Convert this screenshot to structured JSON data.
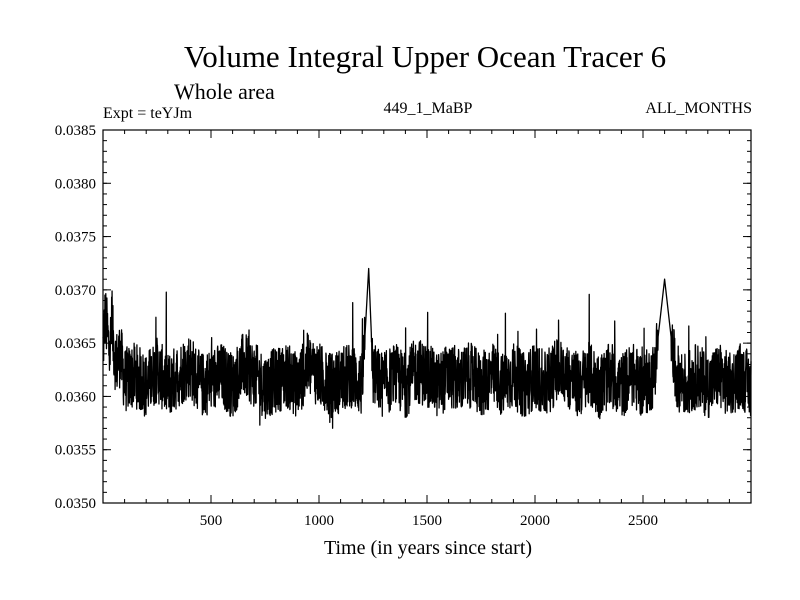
{
  "chart_data": {
    "type": "line",
    "title": "Volume Integral Upper Ocean Tracer 6",
    "subtitle": "Whole area",
    "expt_label": "Expt = teYJm",
    "center_label": "449_1_MaBP",
    "right_label": "ALL_MONTHS",
    "xlabel": "Time (in years since start)",
    "ylabel": "",
    "xlim": [
      0,
      3000
    ],
    "ylim": [
      0.035,
      0.0385
    ],
    "x_ticks": [
      500,
      1000,
      1500,
      2000,
      2500
    ],
    "x_tick_labels": [
      "500",
      "1000",
      "1500",
      "2000",
      "2500"
    ],
    "y_ticks": [
      0.035,
      0.0355,
      0.036,
      0.0365,
      0.037,
      0.0375,
      0.038,
      0.0385
    ],
    "y_tick_labels": [
      "0.0350",
      "0.0355",
      "0.0360",
      "0.0365",
      "0.0370",
      "0.0375",
      "0.0380",
      "0.0385"
    ],
    "series": [
      {
        "name": "Upper Ocean Tracer 6",
        "color": "#000000",
        "x": [
          0,
          10,
          20,
          30,
          40,
          60,
          80,
          100,
          150,
          200,
          250,
          300,
          350,
          400,
          450,
          500,
          550,
          600,
          650,
          700,
          750,
          800,
          850,
          900,
          950,
          1000,
          1050,
          1100,
          1150,
          1200,
          1230,
          1250,
          1300,
          1350,
          1400,
          1450,
          1500,
          1550,
          1600,
          1650,
          1700,
          1750,
          1800,
          1850,
          1900,
          1950,
          2000,
          2050,
          2100,
          2150,
          2200,
          2250,
          2300,
          2350,
          2400,
          2450,
          2500,
          2550,
          2600,
          2650,
          2700,
          2750,
          2800,
          2850,
          2900,
          2950,
          3000
        ],
        "values": [
          0.03645,
          0.03675,
          0.0366,
          0.0364,
          0.03665,
          0.0363,
          0.0364,
          0.03615,
          0.0362,
          0.0361,
          0.03625,
          0.0361,
          0.0362,
          0.0363,
          0.0361,
          0.03615,
          0.0362,
          0.0361,
          0.0363,
          0.0362,
          0.0361,
          0.03615,
          0.0362,
          0.0361,
          0.0363,
          0.0362,
          0.0361,
          0.03615,
          0.0362,
          0.0361,
          0.0372,
          0.0362,
          0.0361,
          0.0362,
          0.0361,
          0.03625,
          0.0362,
          0.0361,
          0.0362,
          0.03615,
          0.0362,
          0.0361,
          0.0362,
          0.0361,
          0.0362,
          0.0361,
          0.0362,
          0.0361,
          0.03625,
          0.0362,
          0.0361,
          0.0362,
          0.0361,
          0.0362,
          0.0361,
          0.0362,
          0.0361,
          0.0362,
          0.0371,
          0.0362,
          0.0361,
          0.0362,
          0.0361,
          0.0362,
          0.0361,
          0.0362,
          0.0361
        ]
      }
    ]
  }
}
